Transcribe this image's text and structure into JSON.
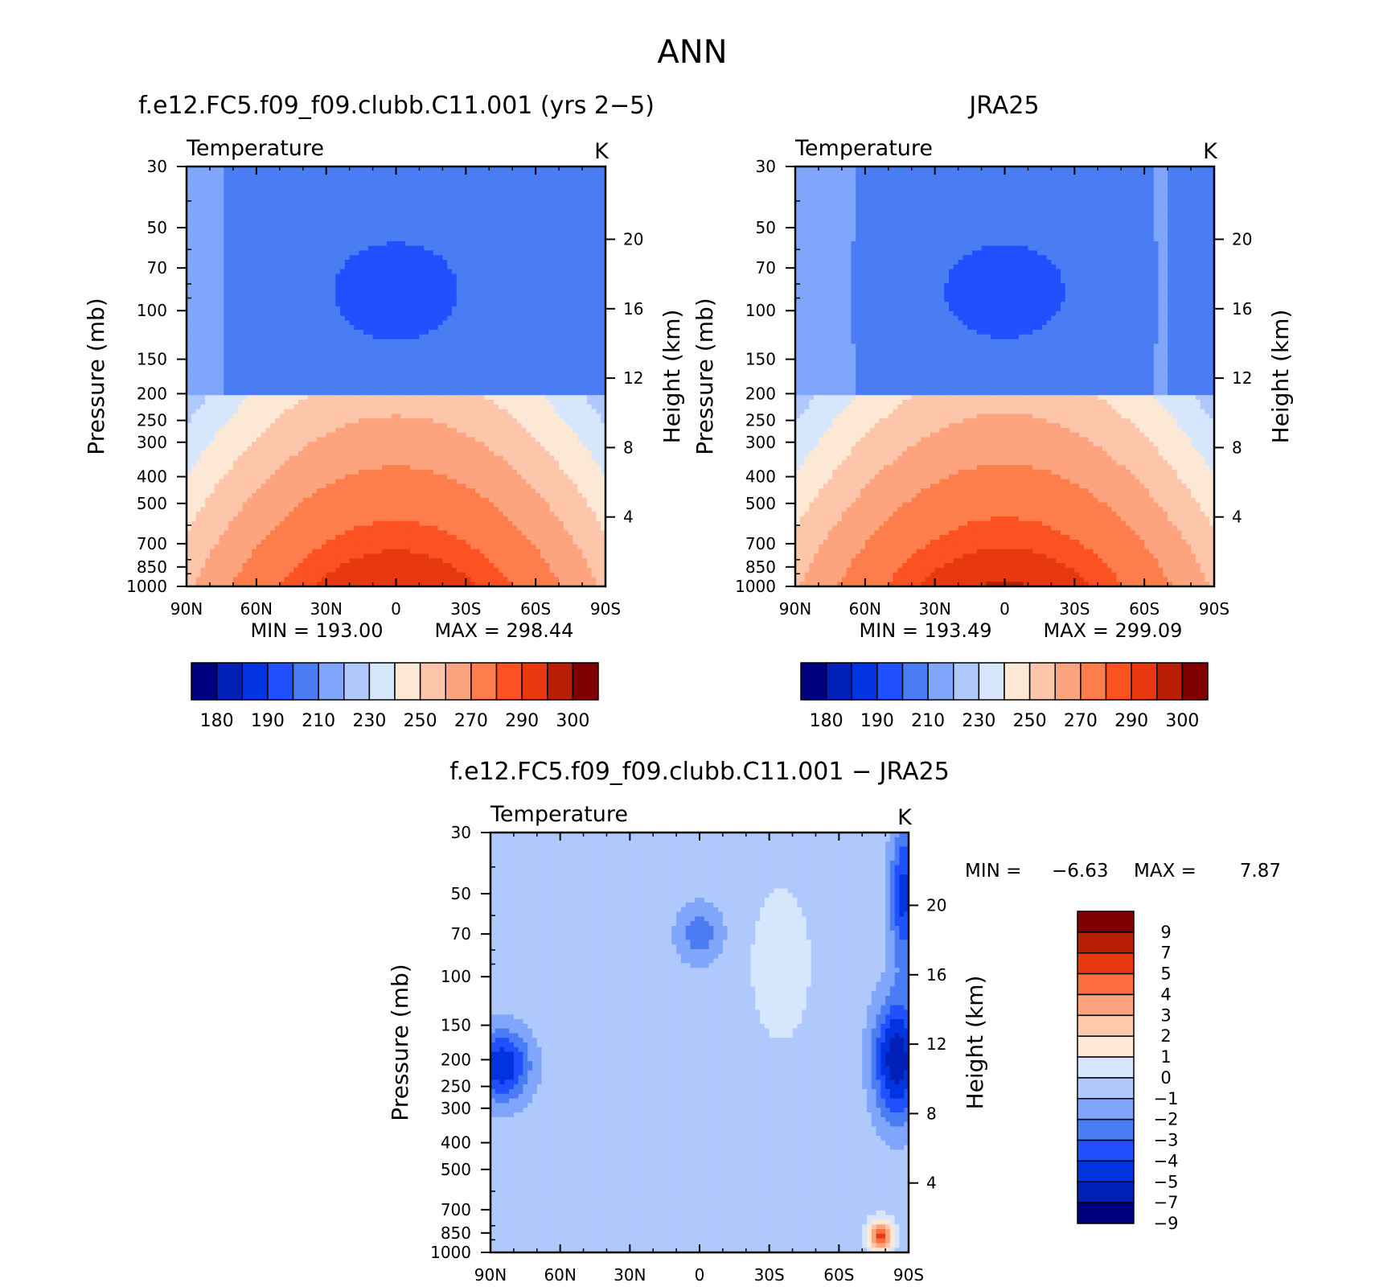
{
  "page_title": "ANN",
  "chart_data": [
    {
      "type": "heatmap",
      "id": "model",
      "title": "f.e12.FC5.f09_f09.clubb.C11.001 (yrs 2−5)",
      "subtitle": "Temperature",
      "unit": "K",
      "ylabel": "Pressure (mb)",
      "y2label": "Height (km)",
      "x_ticks": [
        "90N",
        "60N",
        "30N",
        "0",
        "30S",
        "60S",
        "90S"
      ],
      "x_range": [
        90,
        -90
      ],
      "y_ticks": [
        30,
        50,
        70,
        100,
        150,
        200,
        250,
        300,
        400,
        500,
        700,
        850,
        1000
      ],
      "y_range": [
        30,
        1000
      ],
      "y_scale": "log",
      "y2_ticks": [
        20,
        16,
        12,
        8,
        4
      ],
      "min_label": "MIN = 193.00",
      "max_label": "MAX = 298.44",
      "min": 193.0,
      "max": 298.44,
      "colorbar": {
        "orientation": "horizontal",
        "colors": [
          "#00007f",
          "#0020b8",
          "#0034e0",
          "#2050ff",
          "#4a7df4",
          "#7fa6fb",
          "#b0c9fd",
          "#d6e7fd",
          "#fde8d6",
          "#fdc6aa",
          "#fda47e",
          "#fd7d4c",
          "#fc5120",
          "#e8380f",
          "#b81f04",
          "#7f0000"
        ],
        "labels": [
          "180",
          "190",
          "210",
          "230",
          "250",
          "270",
          "290",
          "300"
        ]
      }
    },
    {
      "type": "heatmap",
      "id": "obs",
      "title": "JRA25",
      "subtitle": "Temperature",
      "unit": "K",
      "ylabel": "Pressure (mb)",
      "y2label": "Height (km)",
      "x_ticks": [
        "90N",
        "60N",
        "30N",
        "0",
        "30S",
        "60S",
        "90S"
      ],
      "x_range": [
        90,
        -90
      ],
      "y_ticks": [
        30,
        50,
        70,
        100,
        150,
        200,
        250,
        300,
        400,
        500,
        700,
        850,
        1000
      ],
      "y_range": [
        30,
        1000
      ],
      "y_scale": "log",
      "y2_ticks": [
        20,
        16,
        12,
        8,
        4
      ],
      "min_label": "MIN = 193.49",
      "max_label": "MAX = 299.09",
      "min": 193.49,
      "max": 299.09,
      "colorbar": {
        "orientation": "horizontal",
        "colors": [
          "#00007f",
          "#0020b8",
          "#0034e0",
          "#2050ff",
          "#4a7df4",
          "#7fa6fb",
          "#b0c9fd",
          "#d6e7fd",
          "#fde8d6",
          "#fdc6aa",
          "#fda47e",
          "#fd7d4c",
          "#fc5120",
          "#e8380f",
          "#b81f04",
          "#7f0000"
        ],
        "labels": [
          "180",
          "190",
          "210",
          "230",
          "250",
          "270",
          "290",
          "300"
        ]
      }
    },
    {
      "type": "heatmap",
      "id": "diff",
      "title": "f.e12.FC5.f09_f09.clubb.C11.001 − JRA25",
      "subtitle": "Temperature",
      "unit": "K",
      "ylabel": "Pressure (mb)",
      "y2label": "Height (km)",
      "x_ticks": [
        "90N",
        "60N",
        "30N",
        "0",
        "30S",
        "60S",
        "90S"
      ],
      "x_range": [
        90,
        -90
      ],
      "y_ticks": [
        30,
        50,
        70,
        100,
        150,
        200,
        250,
        300,
        400,
        500,
        700,
        850,
        1000
      ],
      "y_range": [
        30,
        1000
      ],
      "y_scale": "log",
      "y2_ticks": [
        20,
        16,
        12,
        8,
        4
      ],
      "min_label": "MIN =",
      "min_value": "−6.63",
      "max_label": "MAX =",
      "max_value": "7.87",
      "min": -6.63,
      "max": 7.87,
      "colorbar": {
        "orientation": "vertical",
        "colors": [
          "#7f0000",
          "#b81f04",
          "#e8380f",
          "#fd6e3e",
          "#fda47e",
          "#fdc9ad",
          "#fde8d6",
          "#d6e7fd",
          "#b0c9fd",
          "#7fa6fb",
          "#4a7df4",
          "#2050ff",
          "#0034e0",
          "#0020b8",
          "#00007f"
        ],
        "labels": [
          "9",
          "7",
          "5",
          "4",
          "3",
          "2",
          "1",
          "0",
          "−1",
          "−2",
          "−3",
          "−4",
          "−5",
          "−7",
          "−9"
        ]
      }
    }
  ]
}
